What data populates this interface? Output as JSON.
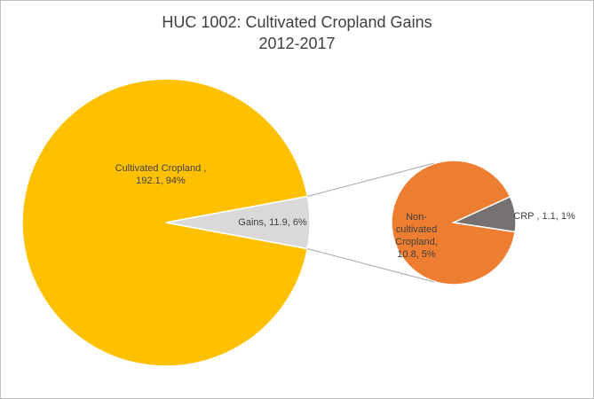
{
  "chart_data": {
    "type": "pie-of-pie",
    "title": "HUC 1002: Cultivated Cropland Gains",
    "subtitle": "2012-2017",
    "main": {
      "values": [
        192.1,
        11.9
      ],
      "value_labels": [
        "Cultivated Cropland , 192.1, 94%",
        "Gains, 11.9, 6%"
      ],
      "colors": [
        "#FFC000",
        "#D9D9D9"
      ]
    },
    "secondary": {
      "values": [
        10.8,
        1.1
      ],
      "value_labels": [
        "Non-cultivated Cropland, 10.8, 5%",
        "CRP , 1.1, 1%"
      ],
      "colors": [
        "#ED7D31",
        "#767171"
      ]
    }
  }
}
